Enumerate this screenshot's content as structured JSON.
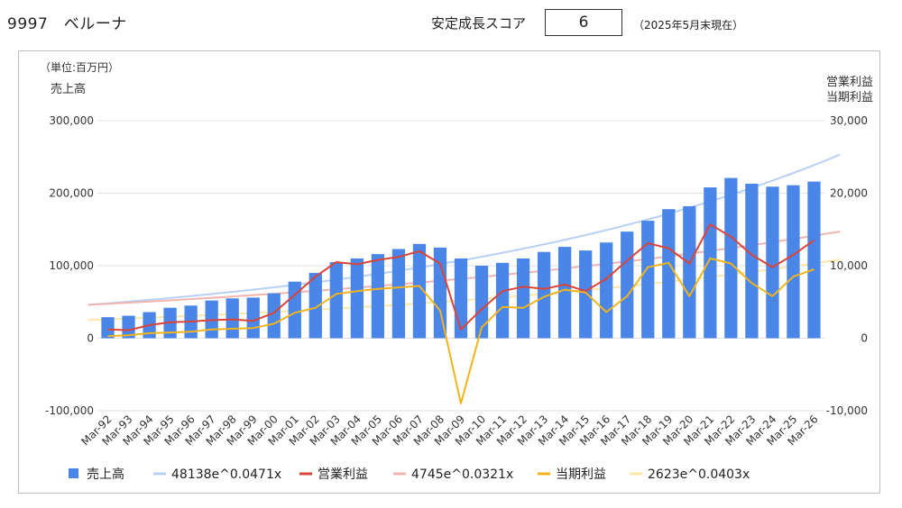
{
  "header": {
    "company": "9997　ベルーナ",
    "score_label": "安定成長スコア",
    "score_value": "6",
    "score_note": "（2025年5月末現在）"
  },
  "chart_data": {
    "type": "bar",
    "unit_label": "（単位:百万円）",
    "left_axis_label": "売上高",
    "right_axis_label_1": "営業利益",
    "right_axis_label_2": "当期利益",
    "left_axis": {
      "min": -100000,
      "max": 300000,
      "ticks": [
        "300,000",
        "200,000",
        "100,000",
        "0",
        "-100,000"
      ]
    },
    "right_axis": {
      "min": -10000,
      "max": 30000,
      "ticks": [
        "30,000",
        "20,000",
        "10,000",
        "0",
        "-10,000"
      ]
    },
    "categories": [
      "Mar-92",
      "Mar-93",
      "Mar-94",
      "Mar-95",
      "Mar-96",
      "Mar-97",
      "Mar-98",
      "Mar-99",
      "Mar-00",
      "Mar-01",
      "Mar-02",
      "Mar-03",
      "Mar-04",
      "Mar-05",
      "Mar-06",
      "Mar-07",
      "Mar-08",
      "Mar-09",
      "Mar-10",
      "Mar-11",
      "Mar-12",
      "Mar-13",
      "Mar-14",
      "Mar-15",
      "Mar-16",
      "Mar-17",
      "Mar-18",
      "Mar-19",
      "Mar-20",
      "Mar-21",
      "Mar-22",
      "Mar-23",
      "Mar-24",
      "Mar-25",
      "Mar-26"
    ],
    "series": [
      {
        "name": "売上高",
        "kind": "bar",
        "axis": "left",
        "color": "#4a86e8",
        "values": [
          29000,
          31000,
          36000,
          42000,
          45000,
          52000,
          55000,
          56000,
          62000,
          78000,
          90000,
          105000,
          110000,
          116000,
          123000,
          130000,
          125000,
          110000,
          100000,
          104000,
          110000,
          119000,
          126000,
          121000,
          132000,
          147000,
          162000,
          178000,
          182000,
          208000,
          221000,
          213000,
          209000,
          211000,
          216000
        ]
      },
      {
        "name": "営業利益",
        "kind": "line",
        "axis": "right",
        "color": "#db4437",
        "values": [
          1200,
          1100,
          1800,
          2200,
          2300,
          2500,
          2600,
          2400,
          3500,
          6000,
          8500,
          10500,
          10200,
          10800,
          11200,
          12000,
          10300,
          1200,
          4000,
          6500,
          7100,
          6800,
          7400,
          6500,
          8200,
          10700,
          13100,
          12400,
          10300,
          15700,
          14000,
          11500,
          9800,
          11500,
          13500
        ]
      },
      {
        "name": "当期利益",
        "kind": "line",
        "axis": "right",
        "color": "#f1b41c",
        "values": [
          300,
          400,
          700,
          800,
          900,
          1200,
          1300,
          1400,
          2000,
          3500,
          4200,
          6100,
          6500,
          6800,
          7000,
          7200,
          3800,
          -9000,
          1500,
          4300,
          4200,
          5700,
          6700,
          6300,
          3600,
          5800,
          9800,
          10400,
          5800,
          11000,
          10300,
          7600,
          5800,
          8500,
          9500
        ]
      },
      {
        "name": "48138e^0.0471x",
        "kind": "trend",
        "axis": "left",
        "color": "#b7d0f4",
        "a": 48138,
        "b": 0.0471
      },
      {
        "name": "4745e^0.0321x",
        "kind": "trend",
        "axis": "right",
        "color": "#f2b4af",
        "a": 4745,
        "b": 0.0321
      },
      {
        "name": "2623e^0.0403x",
        "kind": "trend",
        "axis": "right",
        "color": "#fce8a6",
        "a": 2623,
        "b": 0.0403
      }
    ],
    "legend_position": "bottom",
    "grid": true
  },
  "legend": [
    {
      "label": "売上高",
      "kind": "square",
      "color": "#4a86e8"
    },
    {
      "label": "48138e^0.0471x",
      "kind": "line",
      "color": "#b7d0f4"
    },
    {
      "label": "営業利益",
      "kind": "line",
      "color": "#db4437"
    },
    {
      "label": "4745e^0.0321x",
      "kind": "line",
      "color": "#f2b4af"
    },
    {
      "label": "当期利益",
      "kind": "line",
      "color": "#f1b41c"
    },
    {
      "label": "2623e^0.0403x",
      "kind": "line",
      "color": "#fce8a6"
    }
  ]
}
